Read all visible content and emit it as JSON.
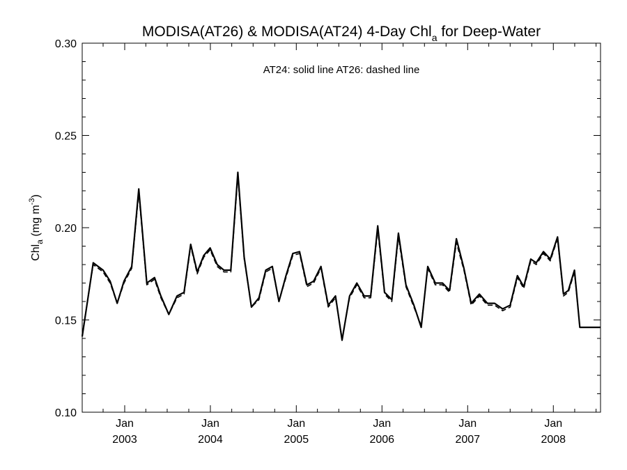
{
  "chart_data": {
    "type": "line",
    "title": {
      "main": "MODISA(AT26) & MODISA(AT24) 4-Day Chl",
      "sub": "a",
      "tail": " for Deep-Water"
    },
    "ylabel": {
      "base": "Chl",
      "sub": "a",
      "unit": " (mg m",
      "sup": "-3",
      "close": ")"
    },
    "annotation": "AT24: solid line   AT26: dashed line",
    "ylim": [
      0.1,
      0.3
    ],
    "xlim": [
      "2002-07-04",
      "2008-07-20"
    ],
    "y_ticks": [
      {
        "value": 0.1,
        "label": "0.10"
      },
      {
        "value": 0.15,
        "label": "0.15"
      },
      {
        "value": 0.2,
        "label": "0.20"
      },
      {
        "value": 0.25,
        "label": "0.25"
      },
      {
        "value": 0.3,
        "label": "0.30"
      }
    ],
    "y_minor_step": 0.01,
    "x_ticks": [
      {
        "date": "2003-01-01",
        "month": "Jan",
        "year": "2003"
      },
      {
        "date": "2004-01-01",
        "month": "Jan",
        "year": "2004"
      },
      {
        "date": "2005-01-01",
        "month": "Jan",
        "year": "2005"
      },
      {
        "date": "2006-01-01",
        "month": "Jan",
        "year": "2006"
      },
      {
        "date": "2007-01-01",
        "month": "Jan",
        "year": "2007"
      },
      {
        "date": "2008-01-01",
        "month": "Jan",
        "year": "2008"
      }
    ],
    "x_minor_ticks_per_year": 4,
    "grid": false,
    "series": [
      {
        "name": "AT24",
        "style": "solid",
        "x": [
          "2002-07-04",
          "2002-08-20",
          "2002-10-01",
          "2002-10-31",
          "2002-11-30",
          "2002-12-29",
          "2003-01-31",
          "2003-03-02",
          "2003-04-05",
          "2003-05-08",
          "2003-06-04",
          "2003-07-08",
          "2003-08-12",
          "2003-09-11",
          "2003-10-09",
          "2003-11-06",
          "2003-12-04",
          "2003-12-31",
          "2004-01-30",
          "2004-02-28",
          "2004-03-28",
          "2004-04-27",
          "2004-05-24",
          "2004-06-24",
          "2004-07-26",
          "2004-08-24",
          "2004-09-21",
          "2004-10-19",
          "2004-11-18",
          "2004-12-17",
          "2005-01-15",
          "2005-02-15",
          "2005-03-16",
          "2005-04-16",
          "2005-05-17",
          "2005-06-17",
          "2005-07-15",
          "2005-08-16",
          "2005-09-16",
          "2005-10-17",
          "2005-11-14",
          "2005-12-14",
          "2006-01-12",
          "2006-02-12",
          "2006-03-12",
          "2006-04-13",
          "2006-05-17",
          "2006-06-17",
          "2006-07-15",
          "2006-08-16",
          "2006-09-16",
          "2006-10-16",
          "2006-11-14",
          "2006-12-16",
          "2007-01-16",
          "2007-02-20",
          "2007-03-26",
          "2007-04-26",
          "2007-05-30",
          "2007-07-01",
          "2007-08-01",
          "2007-08-28",
          "2007-09-27",
          "2007-10-20",
          "2007-11-20",
          "2007-12-19",
          "2008-01-19",
          "2008-02-13",
          "2008-03-05",
          "2008-03-31",
          "2008-04-23",
          "2008-05-28",
          "2008-06-19",
          "2008-07-20"
        ],
        "values": [
          0.141,
          0.181,
          0.177,
          0.171,
          0.159,
          0.171,
          0.179,
          0.221,
          0.17,
          0.173,
          0.163,
          0.153,
          0.163,
          0.165,
          0.191,
          0.176,
          0.185,
          0.189,
          0.18,
          0.177,
          0.177,
          0.23,
          0.184,
          0.157,
          0.162,
          0.177,
          0.179,
          0.16,
          0.174,
          0.186,
          0.187,
          0.169,
          0.171,
          0.179,
          0.158,
          0.163,
          0.139,
          0.163,
          0.17,
          0.163,
          0.163,
          0.201,
          0.165,
          0.161,
          0.197,
          0.169,
          0.158,
          0.146,
          0.179,
          0.17,
          0.17,
          0.166,
          0.194,
          0.178,
          0.159,
          0.164,
          0.159,
          0.159,
          0.156,
          0.158,
          0.174,
          0.168,
          0.183,
          0.181,
          0.187,
          0.183,
          0.195,
          0.164,
          0.166,
          0.177,
          0.146,
          0.146,
          0.146,
          0.146
        ]
      },
      {
        "name": "AT26",
        "style": "dashed",
        "x": [
          "2002-07-04",
          "2002-08-20",
          "2002-10-01",
          "2002-10-31",
          "2002-11-30",
          "2002-12-29",
          "2003-01-31",
          "2003-03-02",
          "2003-04-05",
          "2003-05-08",
          "2003-06-04",
          "2003-07-08",
          "2003-08-12",
          "2003-09-11",
          "2003-10-09",
          "2003-11-06",
          "2003-12-04",
          "2003-12-31",
          "2004-01-30",
          "2004-02-28",
          "2004-03-28",
          "2004-04-27",
          "2004-05-24",
          "2004-06-24",
          "2004-07-26",
          "2004-08-24",
          "2004-09-21",
          "2004-10-19",
          "2004-11-18",
          "2004-12-17",
          "2005-01-15",
          "2005-02-15",
          "2005-03-16",
          "2005-04-16",
          "2005-05-17",
          "2005-06-17",
          "2005-07-15",
          "2005-08-16",
          "2005-09-16",
          "2005-10-17",
          "2005-11-14",
          "2005-12-14",
          "2006-01-12",
          "2006-02-12",
          "2006-03-12",
          "2006-04-13",
          "2006-05-17",
          "2006-06-17",
          "2006-07-15",
          "2006-08-16",
          "2006-09-16",
          "2006-10-16",
          "2006-11-14",
          "2006-12-16",
          "2007-01-16",
          "2007-02-20",
          "2007-03-26",
          "2007-04-26",
          "2007-05-30",
          "2007-07-01",
          "2007-08-01",
          "2007-08-28",
          "2007-09-27",
          "2007-10-20",
          "2007-11-20",
          "2007-12-19",
          "2008-01-19",
          "2008-02-13",
          "2008-03-05",
          "2008-03-31",
          "2008-04-23",
          "2008-05-28",
          "2008-06-19",
          "2008-07-20"
        ],
        "values": [
          0.142,
          0.18,
          0.176,
          0.17,
          0.159,
          0.17,
          0.178,
          0.219,
          0.169,
          0.172,
          0.162,
          0.153,
          0.162,
          0.164,
          0.19,
          0.175,
          0.184,
          0.188,
          0.179,
          0.176,
          0.176,
          0.228,
          0.183,
          0.157,
          0.161,
          0.176,
          0.178,
          0.16,
          0.173,
          0.185,
          0.186,
          0.168,
          0.17,
          0.178,
          0.157,
          0.162,
          0.14,
          0.162,
          0.169,
          0.162,
          0.162,
          0.199,
          0.164,
          0.16,
          0.195,
          0.168,
          0.157,
          0.147,
          0.178,
          0.169,
          0.169,
          0.165,
          0.192,
          0.177,
          0.158,
          0.163,
          0.158,
          0.158,
          0.155,
          0.157,
          0.173,
          0.167,
          0.182,
          0.18,
          0.186,
          0.182,
          0.194,
          0.163,
          0.165,
          0.176,
          0.146,
          0.146,
          0.146,
          0.146
        ]
      }
    ]
  }
}
